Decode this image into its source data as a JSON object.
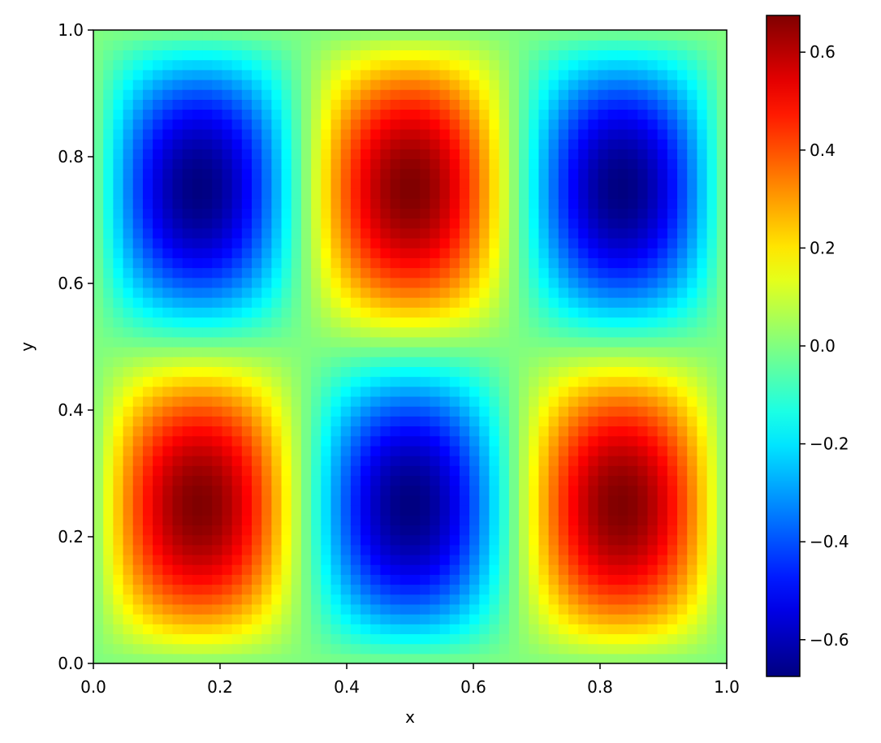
{
  "chart_data": {
    "type": "heatmap",
    "title": "",
    "xlabel": "x",
    "ylabel": "y",
    "xlim": [
      0.0,
      1.0
    ],
    "ylim": [
      0.0,
      1.0
    ],
    "x_ticks": [
      "0.0",
      "0.2",
      "0.4",
      "0.6",
      "0.8",
      "1.0"
    ],
    "y_ticks": [
      "0.0",
      "0.2",
      "0.4",
      "0.6",
      "0.8",
      "1.0"
    ],
    "colormap": "jet",
    "grid": false,
    "field": "0.675 * sin(3*pi*x) * sin(2*pi*y)",
    "grid_resolution": 64,
    "colorbar": {
      "range": [
        -0.675,
        0.675
      ],
      "ticks": [
        0.6,
        0.4,
        0.2,
        0.0,
        -0.2,
        -0.4,
        -0.6
      ],
      "tick_labels": [
        "0.6",
        "0.4",
        "0.2",
        "0.0",
        "−0.2",
        "−0.4",
        "−0.6"
      ]
    },
    "extrema": [
      {
        "x": 0.1667,
        "y": 0.75,
        "value": -0.675
      },
      {
        "x": 0.5,
        "y": 0.75,
        "value": 0.675
      },
      {
        "x": 0.8333,
        "y": 0.75,
        "value": -0.675
      },
      {
        "x": 0.1667,
        "y": 0.25,
        "value": 0.675
      },
      {
        "x": 0.5,
        "y": 0.25,
        "value": -0.675
      },
      {
        "x": 0.8333,
        "y": 0.25,
        "value": 0.675
      }
    ]
  }
}
